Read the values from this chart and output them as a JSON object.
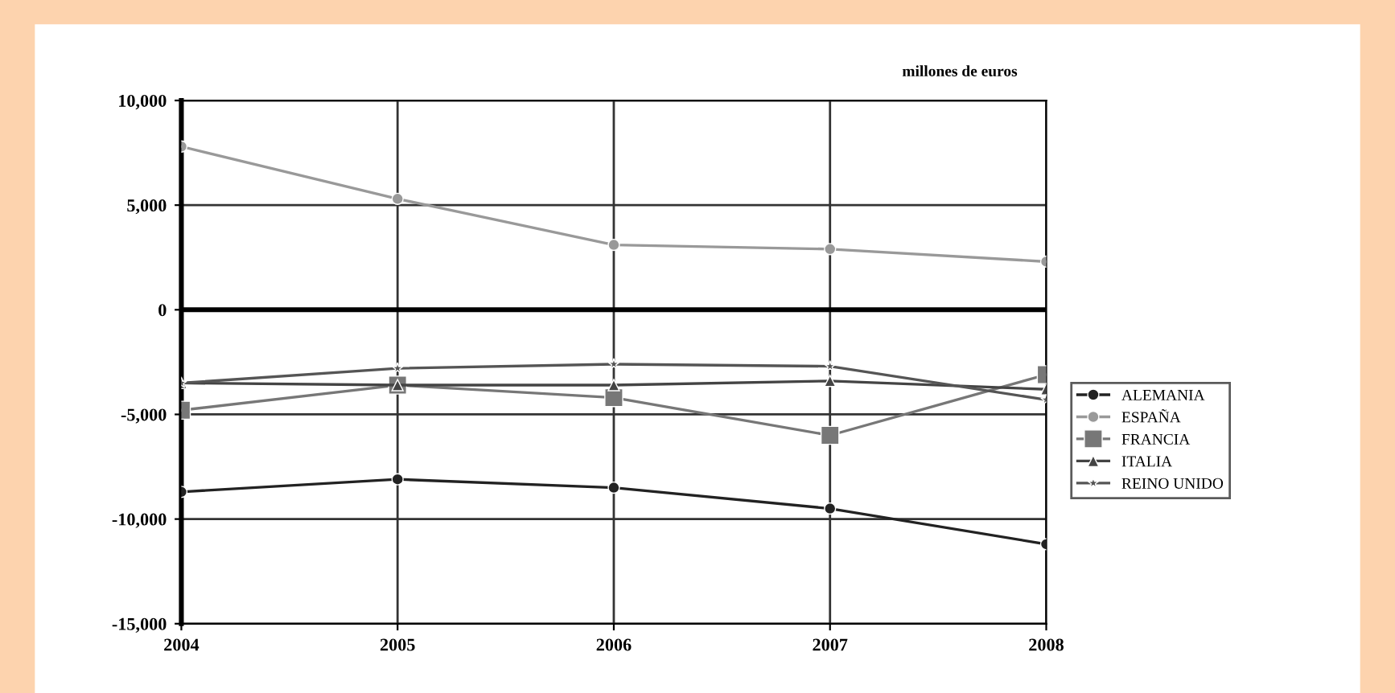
{
  "chart_data": {
    "type": "line",
    "categories": [
      "2004",
      "2005",
      "2006",
      "2007",
      "2008"
    ],
    "series": [
      {
        "name": "ALEMANIA",
        "color": "#222222",
        "marker": "circle",
        "values": [
          -8700,
          -8100,
          -8500,
          -9500,
          -11200
        ]
      },
      {
        "name": "ESPAÑA",
        "color": "#999999",
        "marker": "circle",
        "values": [
          7800,
          5300,
          3100,
          2900,
          2300
        ]
      },
      {
        "name": "FRANCIA",
        "color": "#777777",
        "marker": "square",
        "values": [
          -4800,
          -3600,
          -4200,
          -6000,
          -3100
        ]
      },
      {
        "name": "ITALIA",
        "color": "#444444",
        "marker": "triangle",
        "values": [
          -3500,
          -3600,
          -3600,
          -3400,
          -3800
        ]
      },
      {
        "name": "REINO UNIDO",
        "color": "#555555",
        "marker": "star",
        "values": [
          -3500,
          -2800,
          -2600,
          -2700,
          -4300
        ]
      }
    ],
    "ylim": [
      -15000,
      10000
    ],
    "yticks": [
      {
        "value": -15000,
        "label": "-15,000"
      },
      {
        "value": -10000,
        "label": "-10,000"
      },
      {
        "value": -5000,
        "label": "-5,000"
      },
      0,
      {
        "value": 5000,
        "label": "5,000"
      },
      {
        "value": 10000,
        "label": "10,000"
      }
    ],
    "annotations": [
      "millones de euros"
    ],
    "ref_lines": [
      {
        "axis": "y",
        "value": 0,
        "color": "#000000"
      }
    ],
    "grid": true,
    "legend": "right",
    "line_style": "solid"
  }
}
